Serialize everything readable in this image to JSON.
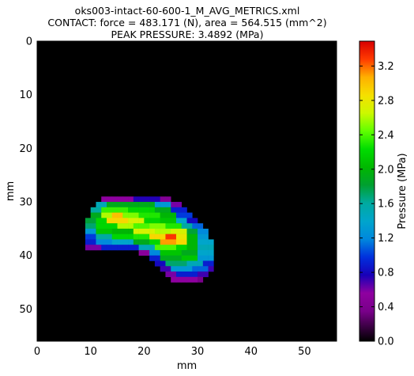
{
  "chart_data": {
    "type": "heatmap",
    "title_lines": [
      "oks003-intact-60-600-1_M_AVG_METRICS.xml",
      "CONTACT: force = 483.171 (N), area = 564.515 (mm^2)",
      "PEAK PRESSURE: 3.4892 (MPa)"
    ],
    "xlabel": "mm",
    "ylabel": "mm",
    "xlim": [
      0,
      56
    ],
    "ylim": [
      0,
      56
    ],
    "y_inverted": true,
    "x_ticks": [
      "0",
      "10",
      "20",
      "30",
      "40",
      "50"
    ],
    "y_ticks": [
      "0",
      "10",
      "20",
      "30",
      "40",
      "50"
    ],
    "grid": false,
    "colormap": "nipy_spectral",
    "colorbar": {
      "label": "Pressure (MPa)",
      "min": 0.0,
      "max": 3.4892,
      "ticks": [
        "0.0",
        "0.4",
        "0.8",
        "1.2",
        "1.6",
        "2.0",
        "2.4",
        "2.8",
        "3.2"
      ]
    },
    "grid_size": [
      56,
      56
    ],
    "background_value": 0.0,
    "high_pressure_region": [
      {
        "row": 29,
        "segments": [
          [
            12,
            18,
            0.55
          ],
          [
            18,
            23,
            0.75
          ],
          [
            23,
            25,
            0.45
          ]
        ]
      },
      {
        "row": 30,
        "segments": [
          [
            11,
            13,
            1.5
          ],
          [
            13,
            22,
            1.9
          ],
          [
            22,
            25,
            1.3
          ],
          [
            25,
            27,
            0.6
          ]
        ]
      },
      {
        "row": 31,
        "segments": [
          [
            10,
            12,
            1.6
          ],
          [
            12,
            17,
            2.35
          ],
          [
            17,
            22,
            2.2
          ],
          [
            22,
            25,
            1.9
          ],
          [
            25,
            28,
            0.9
          ]
        ]
      },
      {
        "row": 32,
        "segments": [
          [
            10,
            12,
            1.9
          ],
          [
            12,
            14,
            2.6
          ],
          [
            14,
            16,
            3.0
          ],
          [
            16,
            19,
            2.5
          ],
          [
            19,
            23,
            2.3
          ],
          [
            23,
            26,
            2.0
          ],
          [
            26,
            29,
            1.0
          ]
        ]
      },
      {
        "row": 33,
        "segments": [
          [
            9,
            11,
            1.8
          ],
          [
            11,
            13,
            2.2
          ],
          [
            13,
            17,
            2.9
          ],
          [
            17,
            20,
            2.7
          ],
          [
            20,
            23,
            2.2
          ],
          [
            23,
            26,
            2.1
          ],
          [
            26,
            28,
            1.4
          ],
          [
            28,
            30,
            0.8
          ]
        ]
      },
      {
        "row": 34,
        "segments": [
          [
            9,
            11,
            1.7
          ],
          [
            11,
            15,
            2.2
          ],
          [
            15,
            18,
            2.6
          ],
          [
            18,
            21,
            2.4
          ],
          [
            21,
            24,
            2.5
          ],
          [
            24,
            27,
            2.3
          ],
          [
            27,
            29,
            1.6
          ],
          [
            29,
            31,
            1.1
          ]
        ]
      },
      {
        "row": 35,
        "segments": [
          [
            9,
            11,
            1.3
          ],
          [
            11,
            14,
            2.1
          ],
          [
            14,
            18,
            2.0
          ],
          [
            18,
            22,
            2.7
          ],
          [
            22,
            25,
            2.6
          ],
          [
            25,
            28,
            2.7
          ],
          [
            28,
            30,
            1.8
          ],
          [
            30,
            32,
            1.2
          ]
        ]
      },
      {
        "row": 36,
        "segments": [
          [
            9,
            11,
            1.0
          ],
          [
            11,
            14,
            1.6
          ],
          [
            14,
            18,
            2.2
          ],
          [
            18,
            21,
            2.3
          ],
          [
            21,
            24,
            2.9
          ],
          [
            24,
            26,
            3.3
          ],
          [
            26,
            28,
            2.8
          ],
          [
            28,
            30,
            2.0
          ],
          [
            30,
            32,
            1.3
          ]
        ]
      },
      {
        "row": 37,
        "segments": [
          [
            9,
            11,
            0.9
          ],
          [
            11,
            14,
            1.2
          ],
          [
            14,
            18,
            1.4
          ],
          [
            18,
            21,
            1.9
          ],
          [
            21,
            23,
            2.2
          ],
          [
            23,
            26,
            3.1
          ],
          [
            26,
            28,
            2.9
          ],
          [
            28,
            30,
            2.0
          ],
          [
            30,
            33,
            1.4
          ]
        ]
      },
      {
        "row": 38,
        "segments": [
          [
            9,
            12,
            0.6
          ],
          [
            12,
            19,
            0.9
          ],
          [
            19,
            22,
            1.5
          ],
          [
            22,
            26,
            2.4
          ],
          [
            26,
            28,
            2.2
          ],
          [
            28,
            30,
            2.0
          ],
          [
            30,
            33,
            1.5
          ]
        ]
      },
      {
        "row": 39,
        "segments": [
          [
            19,
            21,
            0.5
          ],
          [
            21,
            23,
            1.2
          ],
          [
            23,
            27,
            2.1
          ],
          [
            27,
            30,
            1.9
          ],
          [
            30,
            33,
            1.4
          ]
        ]
      },
      {
        "row": 40,
        "segments": [
          [
            21,
            23,
            0.9
          ],
          [
            23,
            27,
            1.9
          ],
          [
            27,
            30,
            2.1
          ],
          [
            30,
            33,
            1.3
          ]
        ]
      },
      {
        "row": 41,
        "segments": [
          [
            22,
            24,
            0.8
          ],
          [
            24,
            28,
            1.7
          ],
          [
            28,
            31,
            1.5
          ],
          [
            31,
            33,
            0.9
          ]
        ]
      },
      {
        "row": 42,
        "segments": [
          [
            23,
            25,
            0.7
          ],
          [
            25,
            29,
            1.3
          ],
          [
            29,
            32,
            1.1
          ],
          [
            32,
            33,
            0.7
          ]
        ]
      },
      {
        "row": 43,
        "segments": [
          [
            24,
            26,
            0.6
          ],
          [
            26,
            30,
            0.9
          ],
          [
            30,
            32,
            0.7
          ]
        ]
      },
      {
        "row": 44,
        "segments": [
          [
            25,
            30,
            0.55
          ],
          [
            30,
            31,
            0.35
          ]
        ]
      }
    ]
  }
}
